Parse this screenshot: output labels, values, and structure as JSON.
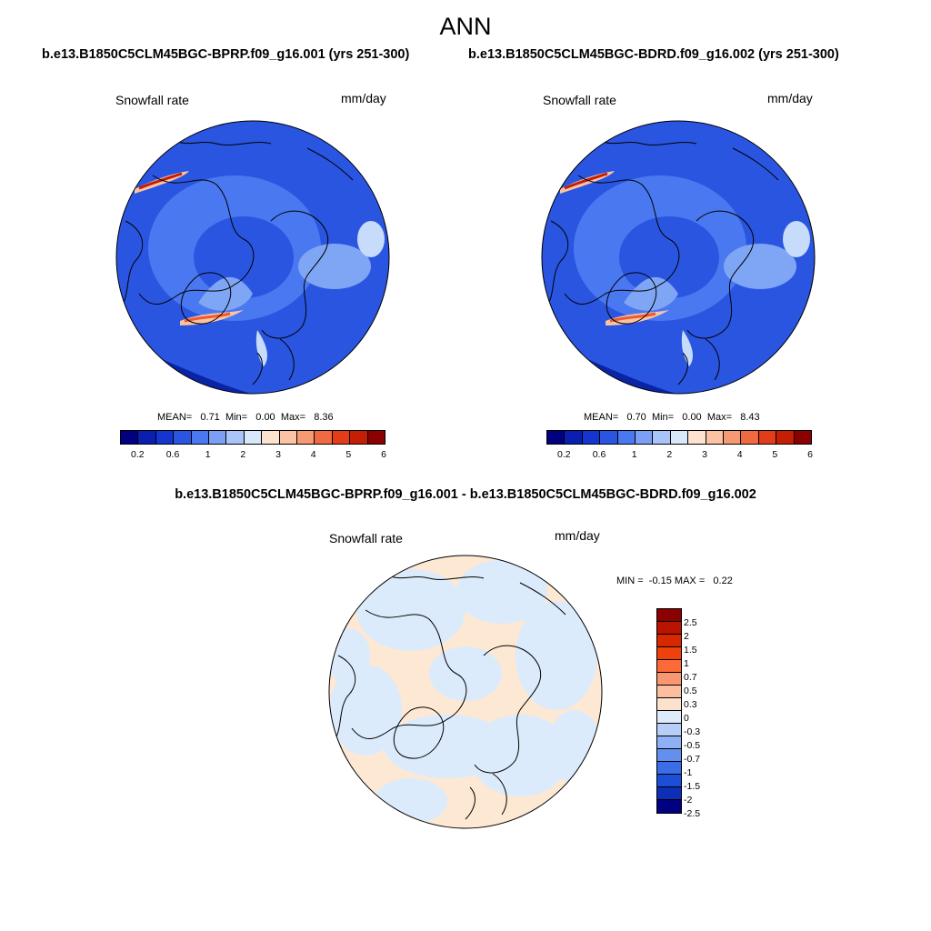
{
  "season": "ANN",
  "case1": {
    "header": "b.e13.B1850C5CLM45BGC-BPRP.f09_g16.001 (yrs 251-300)",
    "variable": "Snowfall rate",
    "units": "mm/day",
    "mean_label": "MEAN=",
    "mean": "0.71",
    "min_label": "Min=",
    "min": "0.00",
    "max_label": "Max=",
    "max": "8.36"
  },
  "case2": {
    "header": "b.e13.B1850C5CLM45BGC-BDRD.f09_g16.002 (yrs 251-300)",
    "variable": "Snowfall rate",
    "units": "mm/day",
    "mean_label": "MEAN=",
    "mean": "0.70",
    "min_label": "Min=",
    "min": "0.00",
    "max_label": "Max=",
    "max": "8.43"
  },
  "diff": {
    "header": "b.e13.B1850C5CLM45BGC-BPRP.f09_g16.001 - b.e13.B1850C5CLM45BGC-BDRD.f09_g16.002",
    "variable": "Snowfall rate",
    "units": "mm/day",
    "min_label": "MIN =",
    "min": "-0.15",
    "max_label": "MAX =",
    "max": "0.22"
  },
  "field_colorbar": {
    "colors": [
      "#000080",
      "#0a1fb0",
      "#1535d0",
      "#2a55e0",
      "#4a78f0",
      "#7a9ff5",
      "#a9c4f7",
      "#d8e8fa",
      "#fde3cf",
      "#fbc3a4",
      "#f69a73",
      "#ef6a40",
      "#e23c18",
      "#c41e05",
      "#8b0000"
    ],
    "labels": [
      "0.2",
      "0.6",
      "1",
      "2",
      "3",
      "4",
      "5",
      "6"
    ]
  },
  "diff_colorbar": {
    "colors": [
      "#8b0000",
      "#b81400",
      "#d72800",
      "#f0400c",
      "#fc6a38",
      "#fb9770",
      "#fbbe9e",
      "#fce2cc",
      "#ddebfb",
      "#b7cef7",
      "#8fb0f3",
      "#6390ee",
      "#3a6de6",
      "#1c4ed8",
      "#0d2fb8",
      "#000080"
    ],
    "labels": [
      "2.5",
      "2",
      "1.5",
      "1",
      "0.7",
      "0.5",
      "0.3",
      "0",
      "-0.3",
      "-0.5",
      "-0.7",
      "-1",
      "-1.5",
      "-2",
      "-2.5"
    ]
  },
  "map_colors": {
    "ocean_deep": "#0a24a6",
    "base": "#2a55e0",
    "mid": "#4a78f0",
    "light": "#7fa6f5",
    "pale": "#c7dbfa",
    "warm": "#fbc3a4",
    "hot": "#ef5a30",
    "peak": "#c41e05",
    "diff_pos": "#fde8d4",
    "diff_neg": "#dcebfb"
  }
}
